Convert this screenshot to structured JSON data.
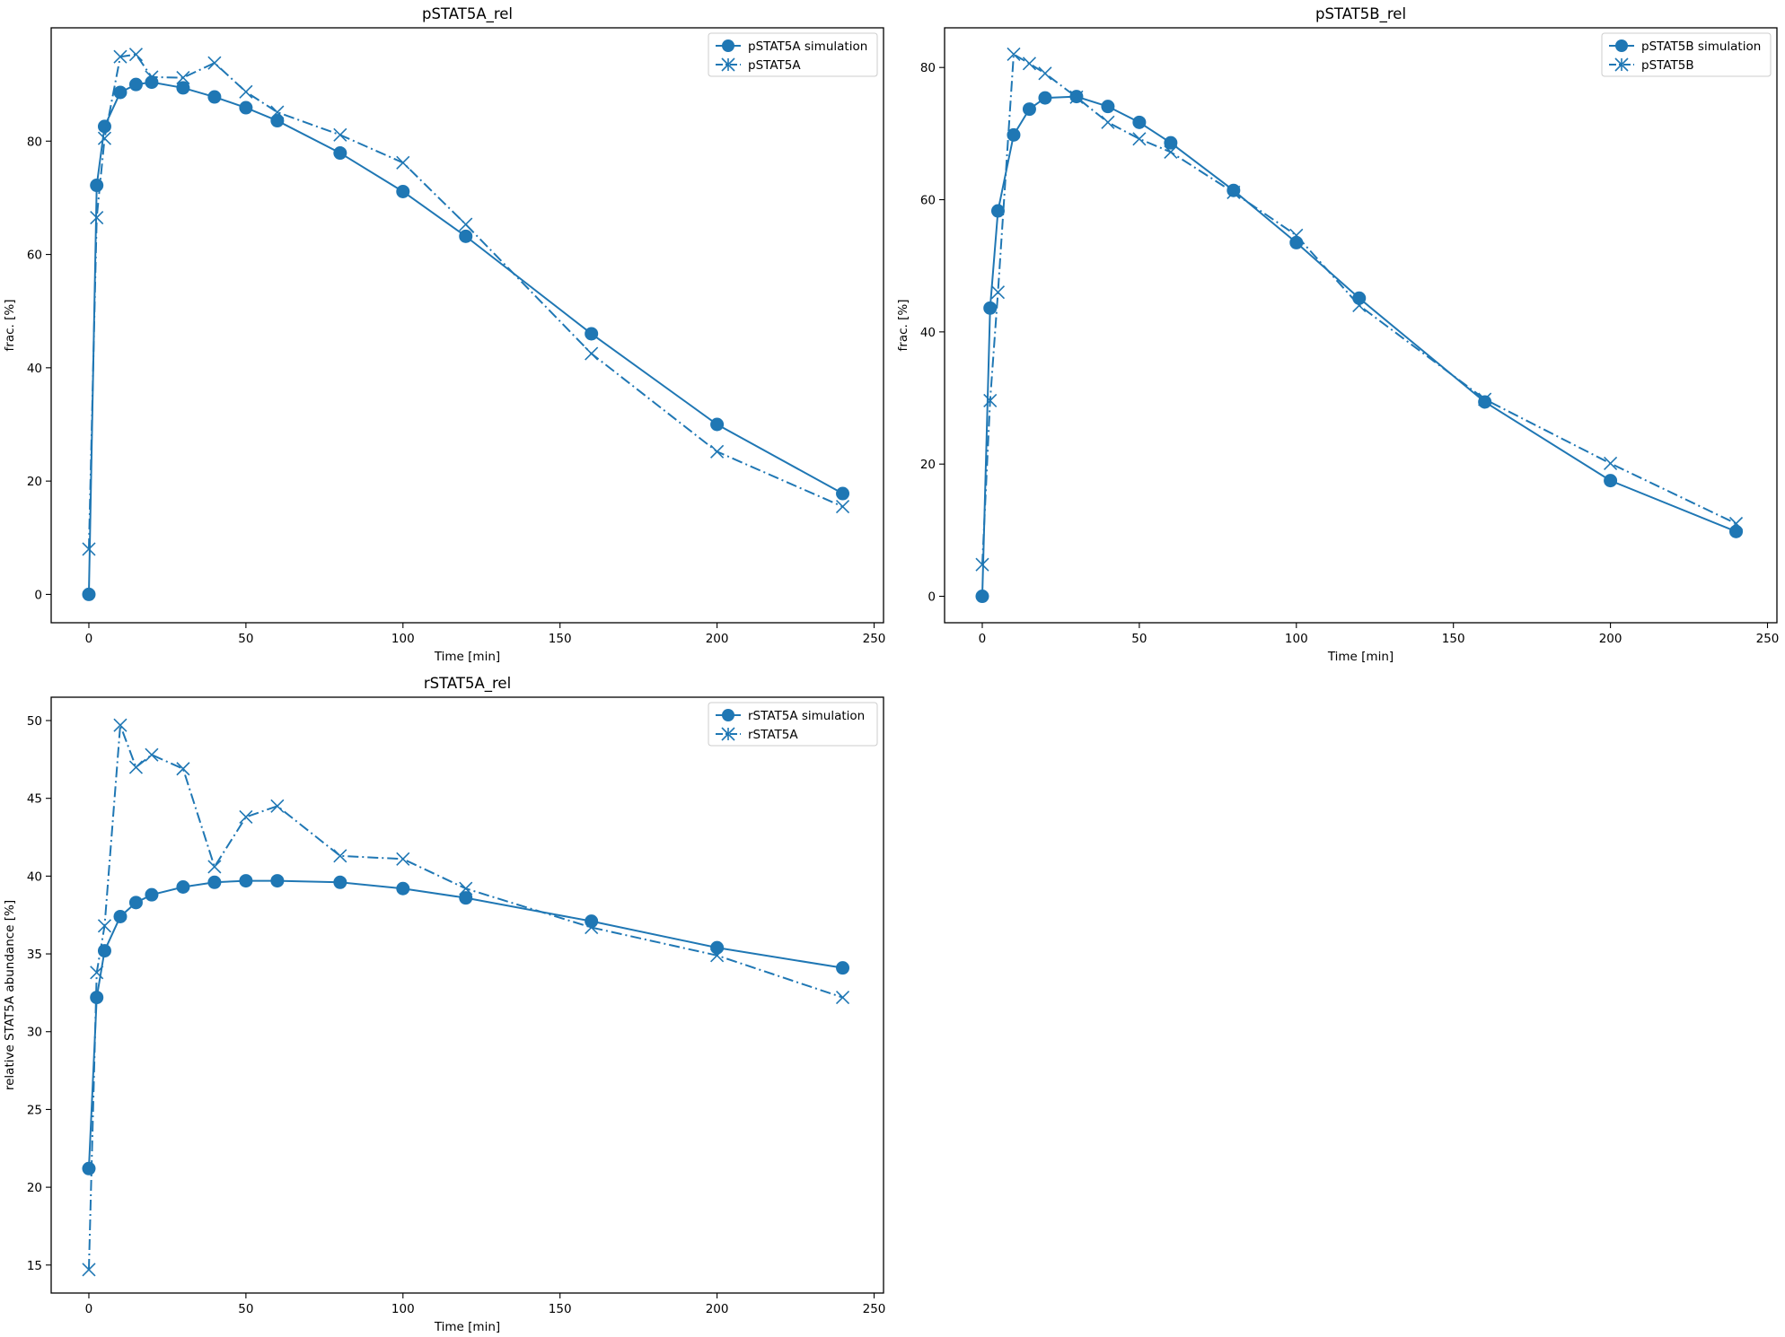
{
  "colors": {
    "series": "#1f77b4",
    "axes": "#000000",
    "background": "#ffffff"
  },
  "chart_data": [
    {
      "type": "line",
      "title": "pSTAT5A_rel",
      "xlabel": "Time [min]",
      "ylabel": "frac. [%]",
      "xlim": [
        -12,
        253
      ],
      "ylim": [
        -5,
        100
      ],
      "xticks": [
        0,
        50,
        100,
        150,
        200,
        250
      ],
      "yticks": [
        0,
        20,
        40,
        60,
        80
      ],
      "legend_position": "upper right",
      "series": [
        {
          "name": "pSTAT5A simulation",
          "style": "solid",
          "marker": "circle",
          "x": [
            0,
            2.5,
            5,
            10,
            15,
            20,
            30,
            40,
            50,
            60,
            80,
            100,
            120,
            160,
            200,
            240
          ],
          "y": [
            0,
            72.2,
            82.6,
            88.6,
            90.0,
            90.4,
            89.4,
            87.8,
            85.9,
            83.6,
            77.9,
            71.1,
            63.2,
            46.0,
            30.0,
            17.8
          ]
        },
        {
          "name": "pSTAT5A",
          "style": "dashdot",
          "marker": "x",
          "x": [
            0,
            2.5,
            5,
            10,
            15,
            20,
            30,
            40,
            50,
            60,
            80,
            100,
            120,
            160,
            200,
            240
          ],
          "y": [
            8.0,
            66.5,
            80.5,
            94.9,
            95.3,
            91.3,
            91.2,
            93.8,
            88.7,
            85.1,
            81.1,
            76.2,
            65.3,
            42.5,
            25.2,
            15.5
          ]
        }
      ]
    },
    {
      "type": "line",
      "title": "pSTAT5B_rel",
      "xlabel": "Time [min]",
      "ylabel": "frac. [%]",
      "xlim": [
        -12,
        253
      ],
      "ylim": [
        -4,
        86
      ],
      "xticks": [
        0,
        50,
        100,
        150,
        200,
        250
      ],
      "yticks": [
        0,
        20,
        40,
        60,
        80
      ],
      "legend_position": "upper right",
      "series": [
        {
          "name": "pSTAT5B simulation",
          "style": "solid",
          "marker": "circle",
          "x": [
            0,
            2.5,
            5,
            10,
            15,
            20,
            30,
            40,
            50,
            60,
            80,
            100,
            120,
            160,
            200,
            240
          ],
          "y": [
            0,
            43.6,
            58.3,
            69.8,
            73.7,
            75.4,
            75.6,
            74.1,
            71.7,
            68.6,
            61.4,
            53.5,
            45.1,
            29.4,
            17.5,
            9.8
          ]
        },
        {
          "name": "pSTAT5B",
          "style": "dashdot",
          "marker": "x",
          "x": [
            0,
            2.5,
            5,
            10,
            15,
            20,
            30,
            40,
            50,
            60,
            80,
            100,
            120,
            160,
            200,
            240
          ],
          "y": [
            4.8,
            29.6,
            46.0,
            82.0,
            80.6,
            79.1,
            75.5,
            71.7,
            69.2,
            67.2,
            61.1,
            54.6,
            44.0,
            29.8,
            20.1,
            11.0
          ]
        }
      ]
    },
    {
      "type": "line",
      "title": "rSTAT5A_rel",
      "xlabel": "Time [min]",
      "ylabel": "relative STAT5A abundance [%]",
      "xlim": [
        -12,
        253
      ],
      "ylim": [
        13.2,
        51.5
      ],
      "xticks": [
        0,
        50,
        100,
        150,
        200,
        250
      ],
      "yticks": [
        15,
        20,
        25,
        30,
        35,
        40,
        45,
        50
      ],
      "legend_position": "upper right",
      "series": [
        {
          "name": "rSTAT5A simulation",
          "style": "solid",
          "marker": "circle",
          "x": [
            0,
            2.5,
            5,
            10,
            15,
            20,
            30,
            40,
            50,
            60,
            80,
            100,
            120,
            160,
            200,
            240
          ],
          "y": [
            21.2,
            32.2,
            35.2,
            37.4,
            38.3,
            38.8,
            39.3,
            39.6,
            39.7,
            39.7,
            39.6,
            39.2,
            38.6,
            37.1,
            35.4,
            34.1
          ]
        },
        {
          "name": "rSTAT5A",
          "style": "dashdot",
          "marker": "x",
          "x": [
            0,
            2.5,
            5,
            10,
            15,
            20,
            30,
            40,
            50,
            60,
            80,
            100,
            120,
            160,
            200,
            240
          ],
          "y": [
            14.7,
            33.8,
            36.8,
            49.7,
            47.0,
            47.8,
            46.9,
            40.6,
            43.8,
            44.5,
            41.3,
            41.1,
            39.2,
            36.7,
            34.9,
            32.2
          ]
        }
      ]
    }
  ]
}
